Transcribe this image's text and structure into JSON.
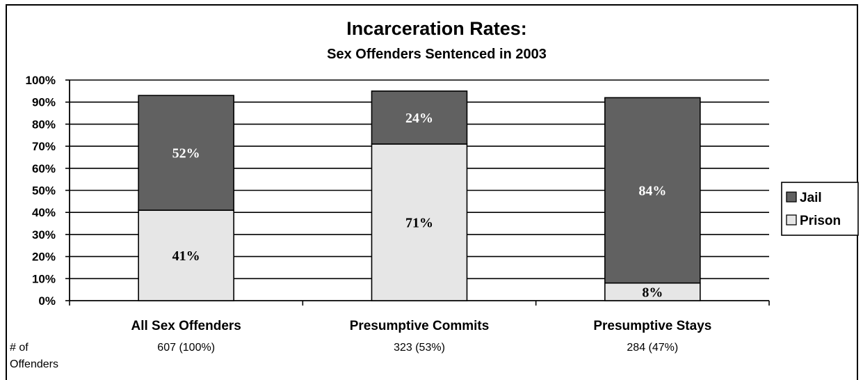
{
  "chart_data": {
    "type": "bar",
    "stacked": true,
    "title": "Incarceration Rates:",
    "subtitle": "Sex Offenders Sentenced in 2003",
    "categories": [
      "All Sex Offenders",
      "Presumptive Commits",
      "Presumptive Stays"
    ],
    "series": [
      {
        "name": "Prison",
        "values": [
          41,
          71,
          8
        ],
        "labels": [
          "41%",
          "71%",
          "8%"
        ],
        "color": "#e6e6e6"
      },
      {
        "name": "Jail",
        "values": [
          52,
          24,
          84
        ],
        "labels": [
          "52%",
          "24%",
          "84%"
        ],
        "color": "#616161"
      }
    ],
    "ylim": [
      0,
      100
    ],
    "y_ticks": [
      "0%",
      "10%",
      "20%",
      "30%",
      "40%",
      "50%",
      "60%",
      "70%",
      "80%",
      "90%",
      "100%"
    ],
    "grid": true,
    "legend_position": "right",
    "offenders_label": "# of Offenders",
    "offender_counts": [
      "607 (100%)",
      "323 (53%)",
      "284 (47%)"
    ]
  }
}
